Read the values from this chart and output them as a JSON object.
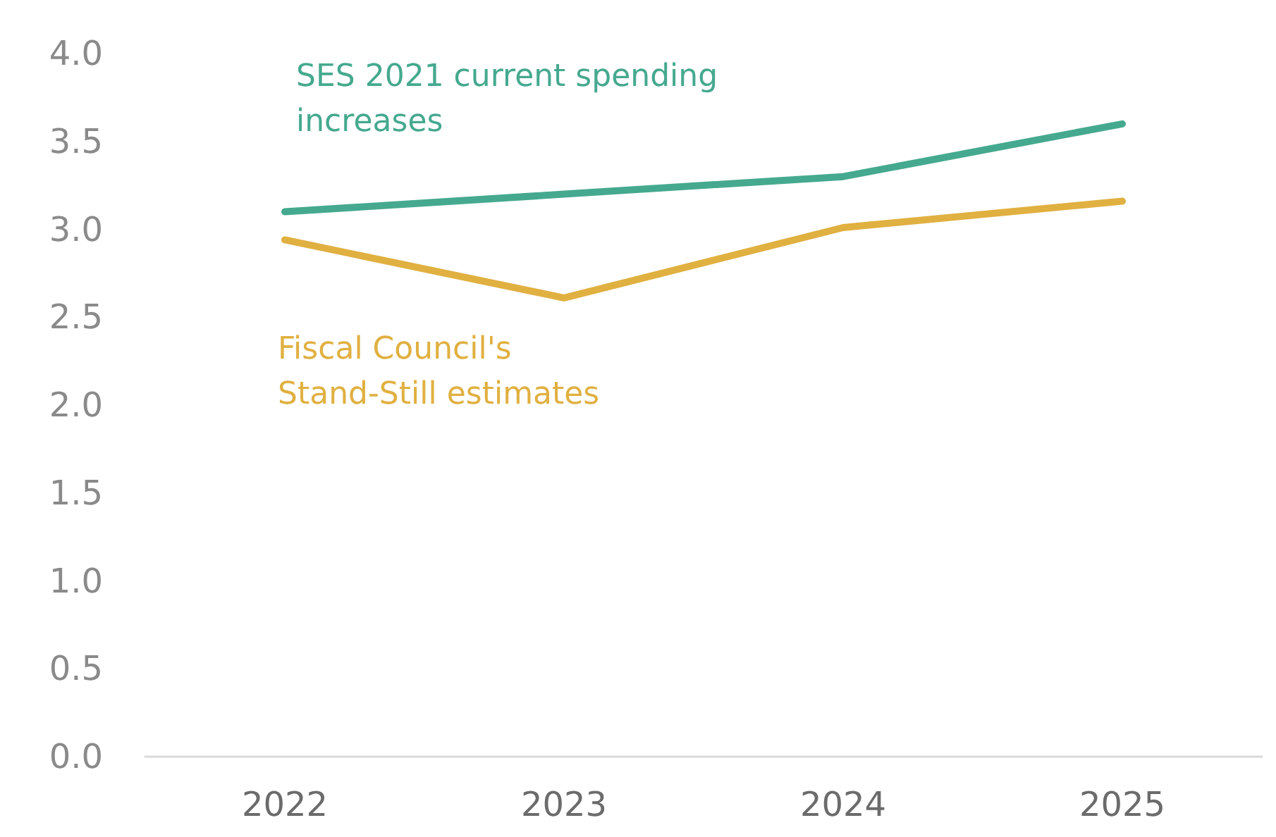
{
  "chart_data": {
    "type": "line",
    "categories": [
      "2022",
      "2023",
      "2024",
      "2025"
    ],
    "series": [
      {
        "name": "SES 2021 current spending increases",
        "color": "#45a98f",
        "values": [
          3.1,
          3.2,
          3.3,
          3.6
        ]
      },
      {
        "name": "Fiscal Council's Stand-Still estimates",
        "color": "#e0b040",
        "values": [
          2.94,
          2.61,
          3.01,
          3.16
        ]
      }
    ],
    "ylim": [
      0,
      4
    ],
    "yticks": [
      {
        "value": 0,
        "label": "0.0"
      },
      {
        "value": 0.5,
        "label": "0.5"
      },
      {
        "value": 1,
        "label": "1.0"
      },
      {
        "value": 1.5,
        "label": "1.5"
      },
      {
        "value": 2,
        "label": "2.0"
      },
      {
        "value": 2.5,
        "label": "2.5"
      },
      {
        "value": 3,
        "label": "3.0"
      },
      {
        "value": 3.5,
        "label": "3.5"
      },
      {
        "value": 4,
        "label": "4.0"
      }
    ],
    "grid": false,
    "legend": false,
    "marker": "none",
    "line_style": "solid"
  }
}
